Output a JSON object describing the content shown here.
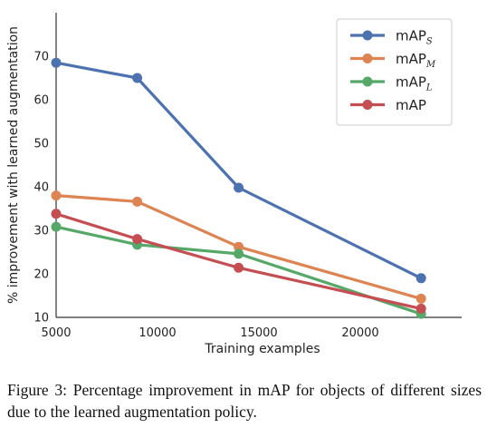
{
  "chart_data": {
    "type": "line",
    "title": "",
    "xlabel": "Training examples",
    "ylabel": "% improvement with learned augmentation",
    "xlim": [
      5000,
      25000
    ],
    "ylim": [
      10,
      80
    ],
    "xticks": [
      5000,
      10000,
      15000,
      20000
    ],
    "yticks": [
      10,
      20,
      30,
      40,
      50,
      60,
      70
    ],
    "grid": false,
    "legend_position": "top-right",
    "x": [
      5000,
      9000,
      14000,
      23000
    ],
    "series": [
      {
        "name": "mAP",
        "subscript": "S",
        "color": "#4c72b0",
        "values": [
          68.5,
          65,
          39.8,
          19
        ]
      },
      {
        "name": "mAP",
        "subscript": "M",
        "color": "#dd8452",
        "values": [
          38,
          36.6,
          26.2,
          14.3
        ]
      },
      {
        "name": "mAP",
        "subscript": "L",
        "color": "#55a868",
        "values": [
          30.8,
          26.7,
          24.6,
          10.8
        ]
      },
      {
        "name": "mAP",
        "subscript": "",
        "color": "#c44e52",
        "values": [
          33.8,
          28,
          21.4,
          12
        ]
      }
    ]
  },
  "caption": "Figure 3: Percentage improvement in mAP for objects of different sizes due to the learned augmentation policy."
}
